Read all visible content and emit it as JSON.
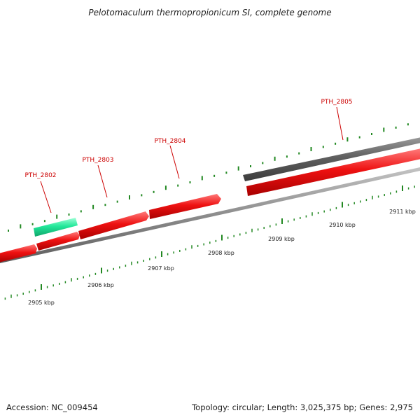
{
  "title": "Pelotomaculum thermopropionicum SI, complete genome",
  "colors": {
    "forward_gene": "#ee1111",
    "reverse_gene": "#5f5f5f",
    "rna_gene": "#22e89a",
    "backbone": "#8c8c8c",
    "tick": "#228822",
    "gene_label": "#cc0000",
    "text": "#222222",
    "background": "#ffffff"
  },
  "gene_labels": [
    {
      "text": "PTH_2802"
    },
    {
      "text": "PTH_2803"
    },
    {
      "text": "PTH_2804"
    },
    {
      "text": "PTH_2805"
    }
  ],
  "scale_labels": [
    "2905 kbp",
    "2906 kbp",
    "2907 kbp",
    "2908 kbp",
    "2909 kbp",
    "2910 kbp",
    "2911 kbp"
  ],
  "footer": {
    "accession": "Accession: NC_009454",
    "summary": "Topology: circular; Length: 3,025,375 bp; Genes: 2,975"
  }
}
